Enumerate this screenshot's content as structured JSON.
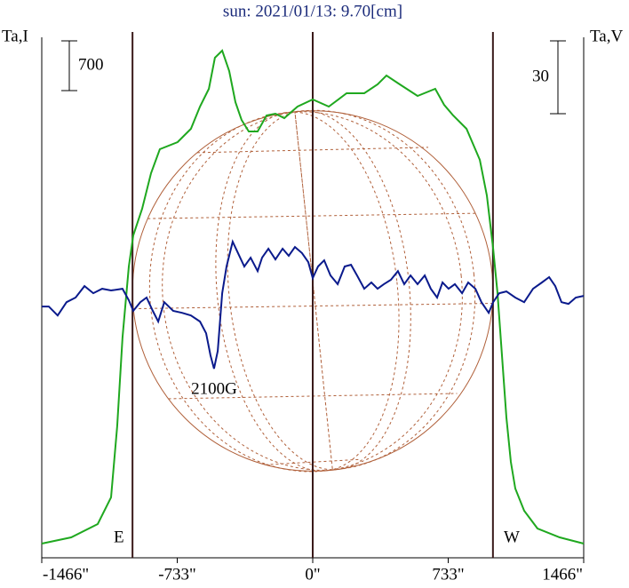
{
  "chart_data": {
    "type": "line",
    "title": "sun: 2021/01/13: 9.70[cm]",
    "ylabel": "Ta,I",
    "y2label": "Ta,V",
    "xlim": [
      -1466,
      1466
    ],
    "xticks": [
      {
        "value": -1466,
        "label": "-1466\""
      },
      {
        "value": -733,
        "label": "-733\""
      },
      {
        "value": 0,
        "label": "0\""
      },
      {
        "value": 733,
        "label": "733\""
      },
      {
        "value": 1466,
        "label": "1466\""
      }
    ],
    "ylim": [
      -200,
      7300
    ],
    "y2lim": [
      -103.5,
      116
    ],
    "scale_bar": {
      "value": 700,
      "label": "700"
    },
    "scale_bar2": {
      "value": 30,
      "label": "30"
    },
    "limbs": [
      -975,
      0,
      975
    ],
    "disk_radius": 975,
    "annotations": {
      "east": "E",
      "west": "W",
      "field": "2100G"
    },
    "series": [
      {
        "color": "#1fa81f",
        "x": [
          -1466,
          -1307,
          -1163,
          -1091,
          -1058,
          -1029,
          -995,
          -971,
          -923,
          -875,
          -827,
          -731,
          -659,
          -610,
          -562,
          -529,
          -490,
          -452,
          -418,
          -385,
          -346,
          -298,
          -250,
          -202,
          -154,
          -82,
          0,
          87,
          183,
          279,
          351,
          399,
          471,
          567,
          663,
          711,
          760,
          832,
          904,
          942,
          976,
          1000,
          1024,
          1048,
          1072,
          1096,
          1144,
          1216,
          1336,
          1466
        ],
        "values": [
          0,
          88,
          275,
          650,
          1650,
          2900,
          3900,
          4338,
          4713,
          5213,
          5550,
          5650,
          5838,
          6150,
          6400,
          6838,
          6938,
          6650,
          6213,
          5963,
          5800,
          5800,
          6025,
          6050,
          5988,
          6150,
          6250,
          6150,
          6338,
          6338,
          6463,
          6588,
          6463,
          6300,
          6400,
          6175,
          6025,
          5838,
          5400,
          4900,
          4150,
          3525,
          2650,
          1775,
          1150,
          775,
          463,
          213,
          88,
          0
        ]
      },
      {
        "color": "#0a1a8c",
        "axis": "y2",
        "x": [
          -1466,
          -1428,
          -1380,
          -1332,
          -1283,
          -1235,
          -1187,
          -1139,
          -1091,
          -1029,
          -995,
          -971,
          -933,
          -899,
          -865,
          -836,
          -803,
          -755,
          -707,
          -659,
          -610,
          -577,
          -553,
          -534,
          -514,
          -490,
          -466,
          -433,
          -404,
          -370,
          -336,
          -298,
          -274,
          -240,
          -202,
          -163,
          -130,
          -96,
          -58,
          -24,
          0,
          29,
          62,
          96,
          135,
          173,
          207,
          240,
          279,
          317,
          351,
          385,
          423,
          461,
          495,
          529,
          567,
          606,
          639,
          673,
          702,
          735,
          769,
          808,
          841,
          880,
          913,
          952,
          976,
          1009,
          1048,
          1096,
          1144,
          1192,
          1240,
          1279,
          1312,
          1346,
          1384,
          1423,
          1466
        ],
        "values": [
          0,
          0,
          -3.7,
          1.8,
          3.7,
          8.4,
          5.5,
          7.3,
          6.6,
          7.3,
          2.6,
          -1.8,
          1.8,
          3.7,
          -1.8,
          -6.2,
          1.8,
          -1.8,
          -2.6,
          -3.7,
          -6.2,
          -11,
          -20.1,
          -25.6,
          -18.3,
          5.5,
          16.5,
          26.7,
          22,
          16.5,
          20.1,
          14.6,
          20.1,
          23.8,
          19.4,
          23.8,
          20.9,
          24.5,
          22,
          18.3,
          11.7,
          16.5,
          19,
          12.8,
          9.2,
          16.5,
          17.2,
          12.8,
          7.3,
          9.9,
          7.3,
          9.2,
          11,
          14.6,
          9.2,
          12.8,
          9.2,
          12.8,
          7.3,
          3.7,
          9.9,
          7.3,
          9.2,
          5.5,
          9.9,
          7.3,
          1.8,
          -2.6,
          1.8,
          5.5,
          6.2,
          3.7,
          1.8,
          7.3,
          9.9,
          12.1,
          8.4,
          1.8,
          1.1,
          3.7,
          4.4
        ]
      }
    ]
  }
}
